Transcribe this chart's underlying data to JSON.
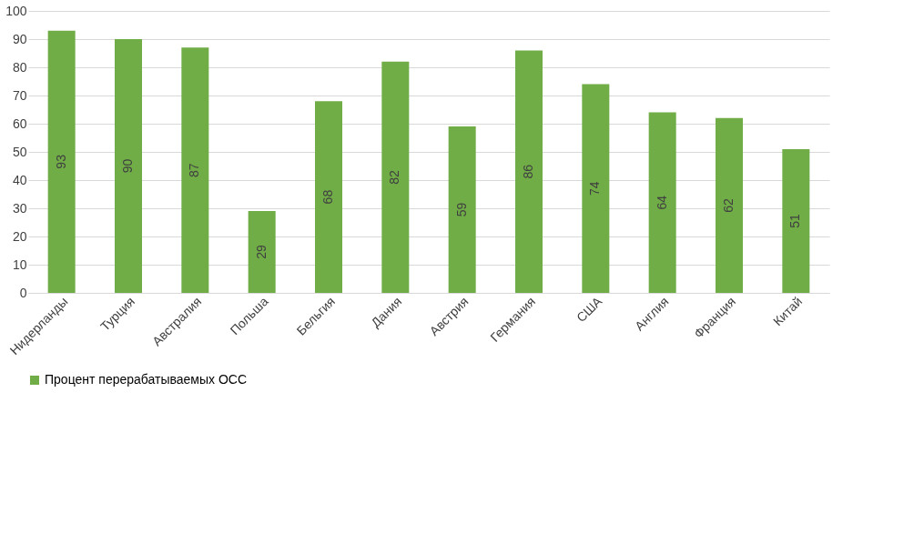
{
  "chart_data": {
    "type": "bar",
    "categories": [
      "Нидерланды",
      "Турция",
      "Австралия",
      "Польша",
      "Бельгия",
      "Дания",
      "Австрия",
      "Германия",
      "США",
      "Англия",
      "Франция",
      "Китай"
    ],
    "series": [
      {
        "name": "Процент перерабатываемых ОСС",
        "color": "#70ad47",
        "values": [
          93,
          90,
          87,
          29,
          68,
          82,
          59,
          86,
          74,
          64,
          62,
          51
        ]
      }
    ],
    "ylim": [
      0,
      100
    ],
    "yticks": [
      0,
      10,
      20,
      30,
      40,
      50,
      60,
      70,
      80,
      90,
      100
    ],
    "grid": "y",
    "legend": "bottom",
    "data_labels": true
  }
}
